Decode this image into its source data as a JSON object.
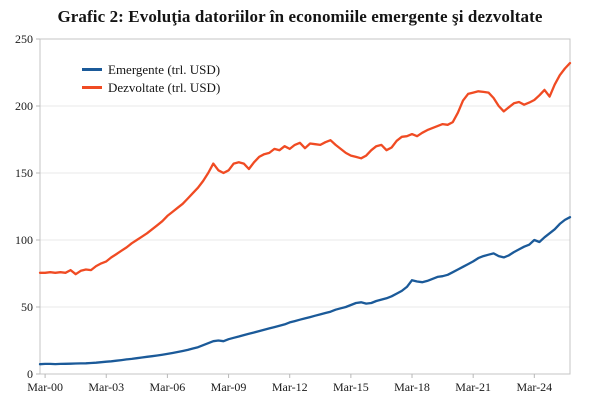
{
  "chart_data": {
    "type": "line",
    "title": "Grafic 2: Evoluţia datoriilor în economiile emergente şi dezvoltate",
    "xlabel": "",
    "ylabel": "",
    "ylim": [
      0,
      250
    ],
    "y_ticks": [
      0,
      50,
      100,
      150,
      200,
      250
    ],
    "x_frequency": "quarterly",
    "x_range": "Dec-1999 to Dec-2025",
    "x_tick_labels": [
      "Mar-00",
      "Mar-03",
      "Mar-06",
      "Mar-09",
      "Mar-12",
      "Mar-15",
      "Mar-18",
      "Mar-21",
      "Mar-24"
    ],
    "x_tick_indices": [
      1,
      13,
      25,
      37,
      49,
      61,
      73,
      85,
      97
    ],
    "grid": "horizontal",
    "legend_position": "top-left",
    "series": [
      {
        "name": "Emergente (trl. USD)",
        "color": "#1b5a99",
        "values": [
          7.3,
          7.5,
          7.5,
          7.4,
          7.5,
          7.6,
          7.7,
          7.8,
          7.9,
          8.0,
          8.2,
          8.4,
          8.8,
          9.2,
          9.5,
          9.9,
          10.4,
          10.9,
          11.3,
          11.8,
          12.3,
          12.8,
          13.3,
          13.8,
          14.4,
          15.0,
          15.7,
          16.4,
          17.2,
          18.0,
          19.0,
          20.0,
          21.5,
          23.0,
          24.5,
          25.0,
          24.5,
          26.0,
          27.0,
          28.0,
          29.0,
          30.0,
          31.0,
          32.0,
          33.0,
          34.0,
          35.0,
          36.0,
          37.0,
          38.5,
          39.5,
          40.5,
          41.5,
          42.5,
          43.5,
          44.5,
          45.5,
          46.5,
          48.0,
          49.0,
          50.0,
          51.5,
          53.0,
          53.5,
          52.5,
          53.0,
          54.5,
          55.5,
          56.5,
          58.0,
          60.0,
          62.0,
          65.0,
          70.0,
          69.0,
          68.5,
          69.5,
          71.0,
          72.5,
          73.0,
          74.0,
          76.0,
          78.0,
          80.0,
          82.0,
          84.0,
          86.5,
          88.0,
          89.0,
          90.0,
          88.0,
          87.0,
          88.5,
          91.0,
          93.0,
          95.0,
          96.5,
          100.0,
          98.5,
          102.0,
          105.0,
          108.0,
          112.0,
          115.0,
          117.0
        ]
      },
      {
        "name": "Dezvoltate (trl. USD)",
        "color": "#f04b23",
        "values": [
          75.5,
          75.5,
          76,
          75.5,
          76,
          75.5,
          77.5,
          74.5,
          77,
          78,
          77.5,
          80.5,
          82.5,
          84,
          87,
          89.5,
          92,
          94.5,
          97.5,
          100,
          102.5,
          105,
          108,
          111,
          114,
          118,
          121,
          124,
          127,
          131,
          135,
          139,
          144,
          150,
          157,
          152,
          150,
          152,
          157,
          158,
          157,
          153,
          158,
          162,
          164,
          165,
          168,
          167,
          170,
          168,
          171,
          172.5,
          168.5,
          172,
          171.5,
          171,
          173,
          174.5,
          171,
          168,
          165,
          163,
          162,
          161,
          163,
          167,
          170,
          171,
          167,
          169,
          174,
          177,
          177.5,
          179,
          177.5,
          180,
          182,
          183.5,
          185,
          186.5,
          186,
          188,
          195,
          204,
          209,
          210,
          211,
          210.5,
          210,
          206,
          200,
          196,
          199,
          202,
          203,
          201,
          202.5,
          204.5,
          208,
          212,
          207,
          216,
          223,
          228,
          232
        ]
      }
    ],
    "style": {
      "grid_color": "#e9e9e9",
      "spine_color": "#c4c4c4",
      "tick_color": "#b8b8b8",
      "label_color": "#1a1a1a",
      "background": "#ffffff"
    }
  }
}
